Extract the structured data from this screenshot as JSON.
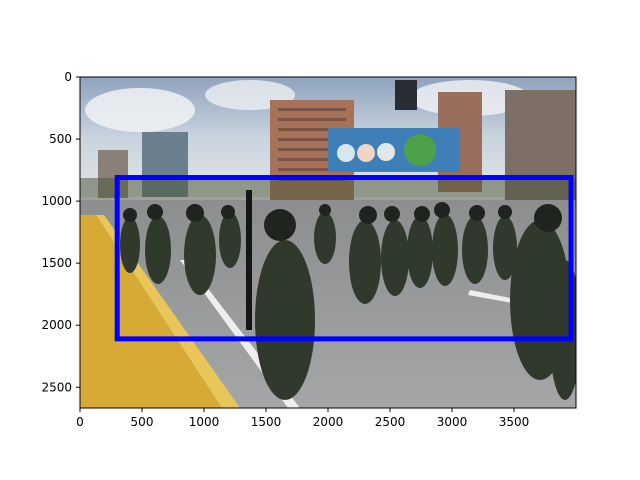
{
  "figure": {
    "type": "image_with_bbox",
    "image": {
      "subject": "armed security forces in dark green uniforms, helmets and gas masks advancing along a multi-lane street",
      "background": "apartment towers, a billboard with cartoon figures, partly cloudy sky",
      "foreground": "yellow curb edge, debris on road, white lane markings"
    },
    "image_extent": {
      "x": [
        0,
        4000
      ],
      "y": [
        0,
        2667
      ]
    },
    "bbox": {
      "x": [
        300,
        3960
      ],
      "y": [
        810,
        2110
      ],
      "color": "#0000ff"
    },
    "x_ticks": [
      "0",
      "500",
      "1000",
      "1500",
      "2000",
      "2500",
      "3000",
      "3500"
    ],
    "y_ticks": [
      "0",
      "500",
      "1000",
      "1500",
      "2000",
      "2500"
    ],
    "x_tick_values": [
      0,
      500,
      1000,
      1500,
      2000,
      2500,
      3000,
      3500
    ],
    "y_tick_values": [
      0,
      500,
      1000,
      1500,
      2000,
      2500
    ]
  }
}
